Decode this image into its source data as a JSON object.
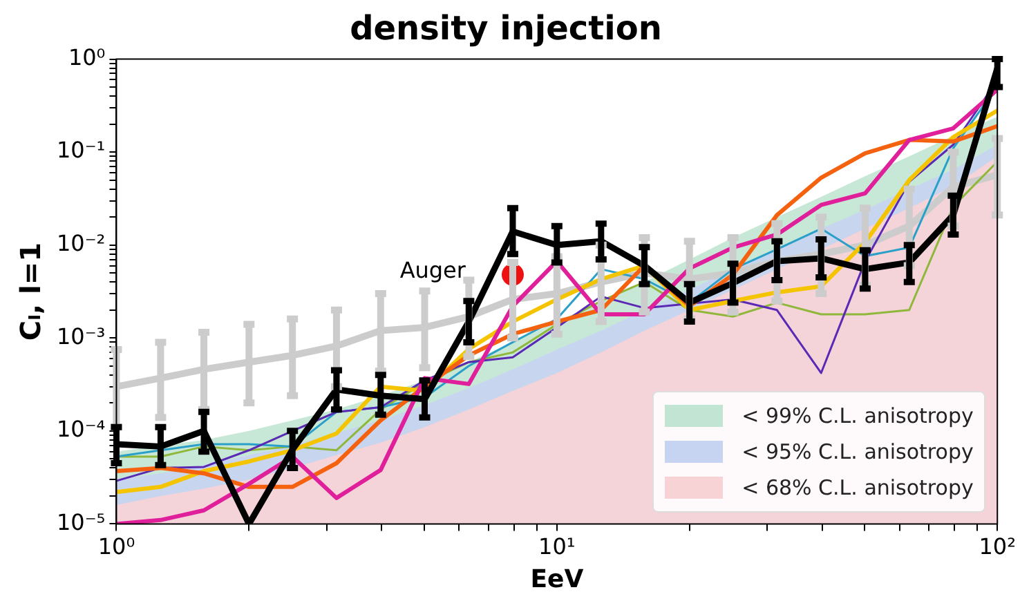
{
  "chart_data": {
    "type": "line",
    "title": "density injection",
    "xlabel": "EeV",
    "ylabel": "Cₗ, l=1",
    "log": "xy",
    "grid": false,
    "legend": "bottom right",
    "marker": "none",
    "x": [
      1,
      1.26,
      1.58,
      2,
      2.51,
      3.16,
      3.98,
      5.01,
      6.31,
      7.94,
      10,
      12.6,
      15.8,
      20,
      25.1,
      31.6,
      39.8,
      50.1,
      63.1,
      79.4,
      100
    ],
    "xlim": [
      1,
      100
    ],
    "xticks": [
      {
        "value": 1,
        "label": "10⁰"
      },
      {
        "value": 2,
        "label": null
      },
      {
        "value": 3,
        "label": null
      },
      {
        "value": 4,
        "label": null
      },
      {
        "value": 5,
        "label": null
      },
      {
        "value": 6,
        "label": null
      },
      {
        "value": 7,
        "label": null
      },
      {
        "value": 8,
        "label": null
      },
      {
        "value": 9,
        "label": null
      },
      {
        "value": 10,
        "label": "10¹"
      },
      {
        "value": 20,
        "label": null
      },
      {
        "value": 30,
        "label": null
      },
      {
        "value": 40,
        "label": null
      },
      {
        "value": 50,
        "label": null
      },
      {
        "value": 60,
        "label": null
      },
      {
        "value": 70,
        "label": null
      },
      {
        "value": 80,
        "label": null
      },
      {
        "value": 90,
        "label": null
      },
      {
        "value": 100,
        "label": "10²"
      }
    ],
    "ylim": [
      1e-05,
      1
    ],
    "yticks": [
      {
        "value": 1e-05,
        "label": "10⁻⁵"
      },
      {
        "value": 2e-05,
        "label": null
      },
      {
        "value": 3e-05,
        "label": null
      },
      {
        "value": 4e-05,
        "label": null
      },
      {
        "value": 5e-05,
        "label": null
      },
      {
        "value": 6e-05,
        "label": null
      },
      {
        "value": 7e-05,
        "label": null
      },
      {
        "value": 8e-05,
        "label": null
      },
      {
        "value": 9e-05,
        "label": null
      },
      {
        "value": 0.0001,
        "label": "10⁻⁴"
      },
      {
        "value": 0.0002,
        "label": null
      },
      {
        "value": 0.0003,
        "label": null
      },
      {
        "value": 0.0004,
        "label": null
      },
      {
        "value": 0.0005,
        "label": null
      },
      {
        "value": 0.0006,
        "label": null
      },
      {
        "value": 0.0007,
        "label": null
      },
      {
        "value": 0.0008,
        "label": null
      },
      {
        "value": 0.0009,
        "label": null
      },
      {
        "value": 0.001,
        "label": "10⁻³"
      },
      {
        "value": 0.002,
        "label": null
      },
      {
        "value": 0.003,
        "label": null
      },
      {
        "value": 0.004,
        "label": null
      },
      {
        "value": 0.005,
        "label": null
      },
      {
        "value": 0.006,
        "label": null
      },
      {
        "value": 0.007,
        "label": null
      },
      {
        "value": 0.008,
        "label": null
      },
      {
        "value": 0.009,
        "label": null
      },
      {
        "value": 0.01,
        "label": "10⁻²"
      },
      {
        "value": 0.02,
        "label": null
      },
      {
        "value": 0.03,
        "label": null
      },
      {
        "value": 0.04,
        "label": null
      },
      {
        "value": 0.05,
        "label": null
      },
      {
        "value": 0.06,
        "label": null
      },
      {
        "value": 0.07,
        "label": null
      },
      {
        "value": 0.08,
        "label": null
      },
      {
        "value": 0.09,
        "label": null
      },
      {
        "value": 0.1,
        "label": "10⁻¹"
      },
      {
        "value": 0.2,
        "label": null
      },
      {
        "value": 0.3,
        "label": null
      },
      {
        "value": 0.4,
        "label": null
      },
      {
        "value": 0.5,
        "label": null
      },
      {
        "value": 0.6,
        "label": null
      },
      {
        "value": 0.7,
        "label": null
      },
      {
        "value": 0.8,
        "label": null
      },
      {
        "value": 0.9,
        "label": null
      },
      {
        "value": 1,
        "label": "10⁰"
      }
    ],
    "series": [
      {
        "type": "area",
        "name": "< 99% C.L. anisotropy",
        "color": "#c2e5d3",
        "values": [
          6e-05,
          7e-05,
          8e-05,
          0.0001,
          0.00013,
          0.00017,
          0.00024,
          0.00035,
          0.00055,
          0.0009,
          0.0015,
          0.0025,
          0.004,
          0.007,
          0.012,
          0.02,
          0.033,
          0.055,
          0.09,
          0.15,
          0.24
        ]
      },
      {
        "type": "area",
        "name": "< 95% C.L. anisotropy",
        "color": "#c6d4f1",
        "values": [
          3e-05,
          3.5e-05,
          4.3e-05,
          5.5e-05,
          7e-05,
          9.5e-05,
          0.00013,
          0.00019,
          0.00029,
          0.00046,
          0.00075,
          0.0012,
          0.002,
          0.0033,
          0.0055,
          0.009,
          0.015,
          0.024,
          0.04,
          0.065,
          0.12
        ]
      },
      {
        "type": "area",
        "name": "< 68% C.L. anisotropy",
        "color": "#f8d3d6",
        "values": [
          1.6e-05,
          2e-05,
          2.4e-05,
          3e-05,
          4e-05,
          5.5e-05,
          7.5e-05,
          0.00011,
          0.00017,
          0.00027,
          0.00042,
          0.0007,
          0.0012,
          0.002,
          0.0033,
          0.0055,
          0.009,
          0.015,
          0.025,
          0.043,
          0.09
        ]
      },
      {
        "color": "#cccccc",
        "values": [
          0.0003,
          0.00037,
          0.00046,
          0.00055,
          0.00065,
          0.00082,
          0.0012,
          0.0013,
          0.0017,
          0.0026,
          0.003,
          0.004,
          0.005,
          0.0043,
          0.005,
          0.0067,
          0.008,
          0.01,
          0.016,
          0.042,
          0.057
        ],
        "errors": [
          [
            0.00011,
            0.00075
          ],
          [
            0.00014,
            0.0009
          ],
          [
            0.00017,
            0.00115
          ],
          [
            0.0002,
            0.0014
          ],
          [
            0.00024,
            0.0016
          ],
          [
            0.0003,
            0.002
          ],
          [
            0.00044,
            0.003
          ],
          [
            0.00048,
            0.0032
          ],
          [
            0.00063,
            0.0042
          ],
          [
            0.001,
            0.0065
          ],
          [
            0.0011,
            0.0075
          ],
          [
            0.0015,
            0.01
          ],
          [
            0.0019,
            0.012
          ],
          [
            0.0016,
            0.011
          ],
          [
            0.0019,
            0.012
          ],
          [
            0.0025,
            0.017
          ],
          [
            0.003,
            0.02
          ],
          [
            0.0037,
            0.025
          ],
          [
            0.006,
            0.04
          ],
          [
            0.016,
            0.1
          ],
          [
            0.021,
            0.14
          ]
        ]
      },
      {
        "color": "#8fb83a",
        "values": [
          5.3e-05,
          5.3e-05,
          6.8e-05,
          6.2e-05,
          6.8e-05,
          6.2e-05,
          0.00017,
          0.00033,
          0.00055,
          0.0007,
          0.0014,
          0.0025,
          0.004,
          0.002,
          0.0017,
          0.0024,
          0.0018,
          0.0018,
          0.002,
          0.026,
          0.079
        ]
      },
      {
        "color": "#2a9fc8",
        "values": [
          5.3e-05,
          6.2e-05,
          7.2e-05,
          7.2e-05,
          6.8e-05,
          0.00016,
          0.00018,
          0.00023,
          0.0005,
          0.0009,
          0.0016,
          0.0055,
          0.0043,
          0.0024,
          0.0055,
          0.009,
          0.015,
          0.0076,
          0.0094,
          0.11,
          0.51
        ]
      },
      {
        "color": "#5b2ab5",
        "values": [
          2.9e-05,
          4e-05,
          4.1e-05,
          6.2e-05,
          0.0001,
          0.00016,
          0.00018,
          0.00035,
          0.00055,
          0.00062,
          0.0013,
          0.0028,
          0.0021,
          null,
          0.0026,
          0.002,
          0.00042,
          0.0067,
          0.048,
          0.12,
          0.59
        ]
      },
      {
        "color": "#f5c400",
        "values": [
          2.2e-05,
          2.5e-05,
          3.7e-05,
          4.7e-05,
          6.2e-05,
          9.4e-05,
          0.0003,
          0.00027,
          0.00076,
          0.0015,
          0.0026,
          0.0043,
          0.006,
          0.002,
          0.0025,
          0.0031,
          0.0036,
          0.0107,
          0.05,
          0.145,
          0.28
        ]
      },
      {
        "color": "#f5620f",
        "values": [
          3.7e-05,
          4e-05,
          3.5e-05,
          2.5e-05,
          2.5e-05,
          4.5e-05,
          0.00013,
          0.0003,
          0.00065,
          0.0011,
          0.0015,
          0.002,
          0.006,
          0.0022,
          0.0048,
          0.021,
          0.053,
          0.097,
          0.135,
          0.13,
          0.19
        ]
      },
      {
        "color": "#e0209a",
        "values": [
          1e-05,
          1.1e-05,
          1.4e-05,
          2.7e-05,
          5.3e-05,
          1.9e-05,
          3.8e-05,
          0.00037,
          0.00032,
          0.0022,
          0.0067,
          0.0018,
          0.0018,
          0.0056,
          0.0094,
          0.013,
          0.027,
          0.036,
          0.135,
          0.18,
          0.47
        ]
      },
      {
        "color": "#000000",
        "values": [
          7.2e-05,
          6.8e-05,
          0.0001,
          1e-05,
          6.3e-05,
          0.00028,
          0.00024,
          0.00022,
          0.0015,
          0.014,
          0.01,
          0.011,
          0.006,
          0.0024,
          0.0039,
          0.0067,
          0.0072,
          0.0055,
          0.0065,
          0.021,
          0.8
        ],
        "errors": [
          [
            4.5e-05,
            0.00011
          ],
          [
            4.3e-05,
            0.00011
          ],
          [
            6e-05,
            0.00016
          ],
          null,
          [
            4e-05,
            0.0001
          ],
          [
            0.00017,
            0.00045
          ],
          [
            0.00015,
            0.0004
          ],
          [
            0.00014,
            0.00035
          ],
          [
            0.0009,
            0.0025
          ],
          [
            0.008,
            0.025
          ],
          [
            0.0065,
            0.016
          ],
          [
            0.007,
            0.017
          ],
          [
            0.0038,
            0.0095
          ],
          [
            0.0015,
            0.0038
          ],
          [
            0.0024,
            0.0063
          ],
          [
            0.0042,
            0.011
          ],
          [
            0.0045,
            0.0115
          ],
          [
            0.0034,
            0.0088
          ],
          [
            0.004,
            0.01
          ],
          [
            0.013,
            0.034
          ],
          [
            0.5,
            1
          ]
        ]
      },
      {
        "type": "scatter",
        "marker": "circle",
        "color": "#ee1111",
        "x": [
          7.94
        ],
        "values": [
          0.0048
        ]
      }
    ],
    "annotations": [
      {
        "text": "Auger",
        "x": 7.94,
        "y": 0.0048
      }
    ]
  }
}
